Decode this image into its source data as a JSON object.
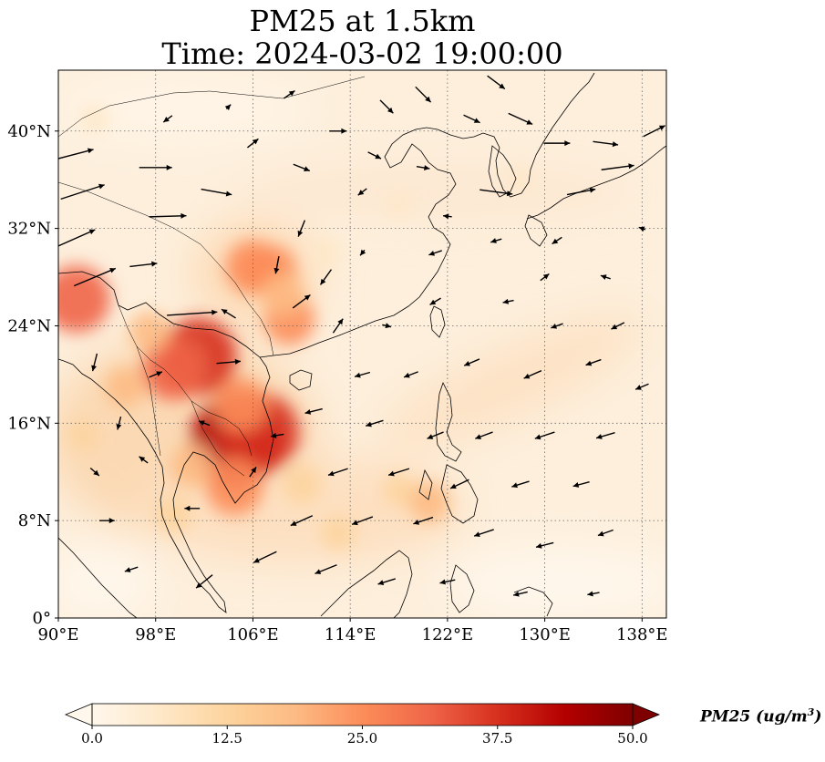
{
  "title": {
    "line1": "PM25 at 1.5km",
    "line2": "Time: 2024-03-02 19:00:00"
  },
  "map": {
    "lon_range": [
      90,
      140
    ],
    "lat_range": [
      0,
      45
    ],
    "lon_ticks": [
      {
        "value": 90,
        "label": "90°E"
      },
      {
        "value": 98,
        "label": "98°E"
      },
      {
        "value": 106,
        "label": "106°E"
      },
      {
        "value": 114,
        "label": "114°E"
      },
      {
        "value": 122,
        "label": "122°E"
      },
      {
        "value": 130,
        "label": "130°E"
      },
      {
        "value": 138,
        "label": "138°E"
      }
    ],
    "lat_ticks": [
      {
        "value": 0,
        "label": "0°"
      },
      {
        "value": 8,
        "label": "8°N"
      },
      {
        "value": 16,
        "label": "16°N"
      },
      {
        "value": 24,
        "label": "24°N"
      },
      {
        "value": 32,
        "label": "32°N"
      },
      {
        "value": 40,
        "label": "40°N"
      }
    ],
    "gridlines": "dotted",
    "colormap": [
      "#fff7ec",
      "#fee8c8",
      "#fdd49e",
      "#fdbb84",
      "#fc8d59",
      "#ef6548",
      "#d7301f",
      "#b30000",
      "#7f0000"
    ],
    "pm25_hotspots": [
      {
        "lon": 104.5,
        "lat": 14.5,
        "value": 46
      },
      {
        "lon": 106.5,
        "lat": 15.2,
        "value": 40
      },
      {
        "lon": 101.5,
        "lat": 21.5,
        "value": 38
      },
      {
        "lon": 99.5,
        "lat": 20.5,
        "value": 30
      },
      {
        "lon": 91.5,
        "lat": 26.2,
        "value": 32
      },
      {
        "lon": 104.5,
        "lat": 10.8,
        "value": 26
      },
      {
        "lon": 105.0,
        "lat": 17.5,
        "value": 24
      },
      {
        "lon": 107.5,
        "lat": 28.5,
        "value": 22
      },
      {
        "lon": 106.0,
        "lat": 28.8,
        "value": 24
      },
      {
        "lon": 109.0,
        "lat": 24.5,
        "value": 22
      },
      {
        "lon": 108.5,
        "lat": 26.5,
        "value": 18
      },
      {
        "lon": 97.5,
        "lat": 23.5,
        "value": 16
      },
      {
        "lon": 95.5,
        "lat": 19.0,
        "value": 16
      },
      {
        "lon": 101.0,
        "lat": 12.5,
        "value": 18
      },
      {
        "lon": 110.0,
        "lat": 11.0,
        "value": 15
      },
      {
        "lon": 99.5,
        "lat": 8.5,
        "value": 14
      },
      {
        "lon": 113.0,
        "lat": 7.0,
        "value": 12
      },
      {
        "lon": 118.0,
        "lat": 10.5,
        "value": 11
      },
      {
        "lon": 120.5,
        "lat": 9.5,
        "value": 16
      },
      {
        "lon": 112.0,
        "lat": 30.0,
        "value": 9
      },
      {
        "lon": 118.0,
        "lat": 34.0,
        "value": 7
      },
      {
        "lon": 128.0,
        "lat": 36.0,
        "value": 6
      },
      {
        "lon": 92.0,
        "lat": 15.0,
        "value": 10
      },
      {
        "lon": 93.0,
        "lat": 41.0,
        "value": 8
      }
    ],
    "wind_vectors": [
      {
        "lon": 91,
        "lat": 38,
        "u": 4.2,
        "v": 1.1
      },
      {
        "lon": 92,
        "lat": 35,
        "u": 4.0,
        "v": 1.3
      },
      {
        "lon": 91,
        "lat": 31,
        "u": 4.5,
        "v": 2.0
      },
      {
        "lon": 93,
        "lat": 28,
        "u": 3.8,
        "v": 1.6
      },
      {
        "lon": 98,
        "lat": 37,
        "u": 3.0,
        "v": 0.0
      },
      {
        "lon": 99,
        "lat": 33,
        "u": 3.4,
        "v": 0.1
      },
      {
        "lon": 97,
        "lat": 29,
        "u": 2.5,
        "v": 0.3
      },
      {
        "lon": 101,
        "lat": 25,
        "u": 4.6,
        "v": 0.3
      },
      {
        "lon": 104,
        "lat": 21,
        "u": 2.2,
        "v": 0.2
      },
      {
        "lon": 103,
        "lat": 35,
        "u": 2.8,
        "v": -0.5
      },
      {
        "lon": 106,
        "lat": 39,
        "u": 1.0,
        "v": 0.8
      },
      {
        "lon": 110,
        "lat": 37,
        "u": 1.5,
        "v": -0.6
      },
      {
        "lon": 113,
        "lat": 40,
        "u": 1.6,
        "v": 0.0
      },
      {
        "lon": 117,
        "lat": 42,
        "u": 1.2,
        "v": -1.2
      },
      {
        "lon": 120,
        "lat": 43,
        "u": 1.4,
        "v": -1.4
      },
      {
        "lon": 124,
        "lat": 41,
        "u": 1.5,
        "v": -0.7
      },
      {
        "lon": 128,
        "lat": 41,
        "u": 2.2,
        "v": -1.0
      },
      {
        "lon": 131,
        "lat": 39,
        "u": 2.4,
        "v": 0.0
      },
      {
        "lon": 135,
        "lat": 39,
        "u": 2.3,
        "v": -0.3
      },
      {
        "lon": 139,
        "lat": 40,
        "u": 2.0,
        "v": 1.0
      },
      {
        "lon": 133,
        "lat": 35,
        "u": 2.6,
        "v": 0.5
      },
      {
        "lon": 136,
        "lat": 37,
        "u": 3.0,
        "v": 0.4
      },
      {
        "lon": 126,
        "lat": 35,
        "u": 3.0,
        "v": -0.4
      },
      {
        "lon": 120,
        "lat": 37,
        "u": 1.2,
        "v": -0.2
      },
      {
        "lon": 115,
        "lat": 35,
        "u": -0.8,
        "v": -0.6
      },
      {
        "lon": 110,
        "lat": 32,
        "u": -0.6,
        "v": -1.5
      },
      {
        "lon": 108,
        "lat": 29,
        "u": -0.3,
        "v": -1.6
      },
      {
        "lon": 112,
        "lat": 28,
        "u": -1.0,
        "v": -1.4
      },
      {
        "lon": 115,
        "lat": 30,
        "u": -0.4,
        "v": -0.5
      },
      {
        "lon": 121,
        "lat": 30,
        "u": -1.2,
        "v": -0.4
      },
      {
        "lon": 126,
        "lat": 31,
        "u": -1.0,
        "v": -0.3
      },
      {
        "lon": 131,
        "lat": 31,
        "u": -0.9,
        "v": -0.6
      },
      {
        "lon": 135,
        "lat": 28,
        "u": -0.9,
        "v": 0.3
      },
      {
        "lon": 138,
        "lat": 32,
        "u": -0.6,
        "v": 0.2
      },
      {
        "lon": 110,
        "lat": 26,
        "u": 1.6,
        "v": 1.2
      },
      {
        "lon": 113,
        "lat": 24,
        "u": 0.9,
        "v": 1.3
      },
      {
        "lon": 117,
        "lat": 24,
        "u": 0.8,
        "v": -0.2
      },
      {
        "lon": 121,
        "lat": 26,
        "u": -1.0,
        "v": -0.6
      },
      {
        "lon": 127,
        "lat": 26,
        "u": -1.0,
        "v": -0.2
      },
      {
        "lon": 131,
        "lat": 24,
        "u": -1.1,
        "v": -0.4
      },
      {
        "lon": 136,
        "lat": 24,
        "u": -1.2,
        "v": -0.6
      },
      {
        "lon": 115,
        "lat": 20,
        "u": -1.4,
        "v": -0.4
      },
      {
        "lon": 119,
        "lat": 20,
        "u": -1.3,
        "v": -0.5
      },
      {
        "lon": 124,
        "lat": 21,
        "u": -1.4,
        "v": -0.6
      },
      {
        "lon": 129,
        "lat": 20,
        "u": -1.6,
        "v": -0.7
      },
      {
        "lon": 134,
        "lat": 21,
        "u": -1.4,
        "v": -0.5
      },
      {
        "lon": 138,
        "lat": 19,
        "u": -1.2,
        "v": -0.5
      },
      {
        "lon": 111,
        "lat": 17,
        "u": -1.6,
        "v": -0.4
      },
      {
        "lon": 116,
        "lat": 16,
        "u": -1.6,
        "v": -0.5
      },
      {
        "lon": 121,
        "lat": 15,
        "u": -1.5,
        "v": -0.6
      },
      {
        "lon": 125,
        "lat": 15,
        "u": -1.6,
        "v": -0.6
      },
      {
        "lon": 130,
        "lat": 15,
        "u": -1.8,
        "v": -0.6
      },
      {
        "lon": 135,
        "lat": 15,
        "u": -1.7,
        "v": -0.5
      },
      {
        "lon": 113,
        "lat": 12,
        "u": -1.8,
        "v": -0.6
      },
      {
        "lon": 118,
        "lat": 12,
        "u": -1.9,
        "v": -0.6
      },
      {
        "lon": 123,
        "lat": 11,
        "u": -1.7,
        "v": -0.8
      },
      {
        "lon": 128,
        "lat": 11,
        "u": -1.6,
        "v": -0.5
      },
      {
        "lon": 133,
        "lat": 11,
        "u": -1.5,
        "v": -0.4
      },
      {
        "lon": 110,
        "lat": 8,
        "u": -2.0,
        "v": -0.9
      },
      {
        "lon": 115,
        "lat": 8,
        "u": -1.9,
        "v": -0.7
      },
      {
        "lon": 120,
        "lat": 8,
        "u": -1.8,
        "v": -0.6
      },
      {
        "lon": 125,
        "lat": 7,
        "u": -1.8,
        "v": -0.6
      },
      {
        "lon": 130,
        "lat": 6,
        "u": -1.6,
        "v": -0.4
      },
      {
        "lon": 135,
        "lat": 7,
        "u": -1.4,
        "v": -0.5
      },
      {
        "lon": 107,
        "lat": 5,
        "u": -2.1,
        "v": -1.0
      },
      {
        "lon": 112,
        "lat": 4,
        "u": -2.0,
        "v": -0.8
      },
      {
        "lon": 117,
        "lat": 3,
        "u": -1.6,
        "v": -0.5
      },
      {
        "lon": 122,
        "lat": 3,
        "u": -1.4,
        "v": -0.3
      },
      {
        "lon": 128,
        "lat": 2,
        "u": -1.3,
        "v": -0.3
      },
      {
        "lon": 134,
        "lat": 2,
        "u": -1.1,
        "v": -0.2
      },
      {
        "lon": 102,
        "lat": 3,
        "u": -1.5,
        "v": -1.2
      },
      {
        "lon": 96,
        "lat": 4,
        "u": -1.2,
        "v": -0.4
      },
      {
        "lon": 94,
        "lat": 8,
        "u": 1.4,
        "v": 0.0
      },
      {
        "lon": 93,
        "lat": 12,
        "u": 0.8,
        "v": -0.7
      },
      {
        "lon": 95,
        "lat": 16,
        "u": -0.3,
        "v": -1.2
      },
      {
        "lon": 93,
        "lat": 21,
        "u": -0.4,
        "v": -1.6
      },
      {
        "lon": 97,
        "lat": 13,
        "u": -0.8,
        "v": 0.6
      },
      {
        "lon": 102,
        "lat": 16,
        "u": -1.0,
        "v": 0.4
      },
      {
        "lon": 101,
        "lat": 9,
        "u": -1.4,
        "v": 0.0
      },
      {
        "lon": 106,
        "lat": 12,
        "u": 0.6,
        "v": 0.9
      },
      {
        "lon": 108,
        "lat": 15,
        "u": -1.2,
        "v": -0.2
      },
      {
        "lon": 104,
        "lat": 25,
        "u": -1.3,
        "v": 0.8
      },
      {
        "lon": 98,
        "lat": 20,
        "u": 1.2,
        "v": 0.5
      },
      {
        "lon": 99,
        "lat": 41,
        "u": -0.8,
        "v": -0.6
      },
      {
        "lon": 104,
        "lat": 42,
        "u": 0.4,
        "v": 0.4
      },
      {
        "lon": 109,
        "lat": 43,
        "u": 1.0,
        "v": 0.7
      },
      {
        "lon": 116,
        "lat": 38,
        "u": 1.2,
        "v": -0.6
      },
      {
        "lon": 122,
        "lat": 33,
        "u": -0.8,
        "v": 0.1
      },
      {
        "lon": 130,
        "lat": 28,
        "u": 0.8,
        "v": 0.6
      },
      {
        "lon": 126,
        "lat": 44,
        "u": 1.6,
        "v": -1.2
      }
    ]
  },
  "colorbar": {
    "min": 0,
    "max": 50,
    "ticks": [
      "0.0",
      "12.5",
      "25.0",
      "37.5",
      "50.0"
    ],
    "label": "PM25 (ug/m^3)",
    "label_main": "PM25 (ug/m",
    "label_sup": "3",
    "label_end": ")"
  }
}
